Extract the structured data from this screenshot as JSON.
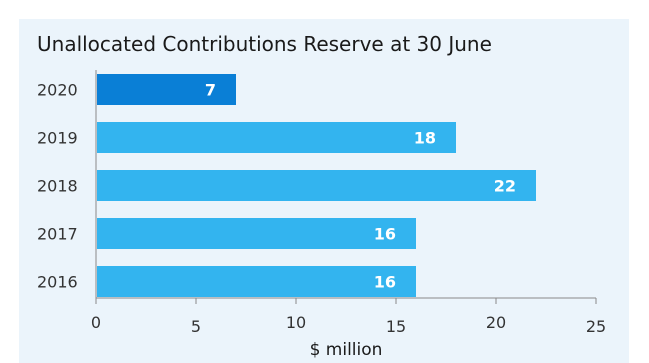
{
  "chart_data": {
    "type": "bar",
    "orientation": "horizontal",
    "title": "Unallocated Contributions Reserve at 30 June",
    "xlabel": "$ million",
    "ylabel": "",
    "categories": [
      "2020",
      "2019",
      "2018",
      "2017",
      "2016"
    ],
    "values": [
      7,
      18,
      22,
      16,
      16
    ],
    "xlim": [
      0,
      25
    ],
    "xticks": [
      0,
      5,
      10,
      15,
      20,
      25
    ],
    "grid": false,
    "colors": {
      "highlight": "#0a7fd6",
      "bar": "#33b4ef",
      "background": "#ebf4fb"
    },
    "highlight_category": "2020"
  }
}
